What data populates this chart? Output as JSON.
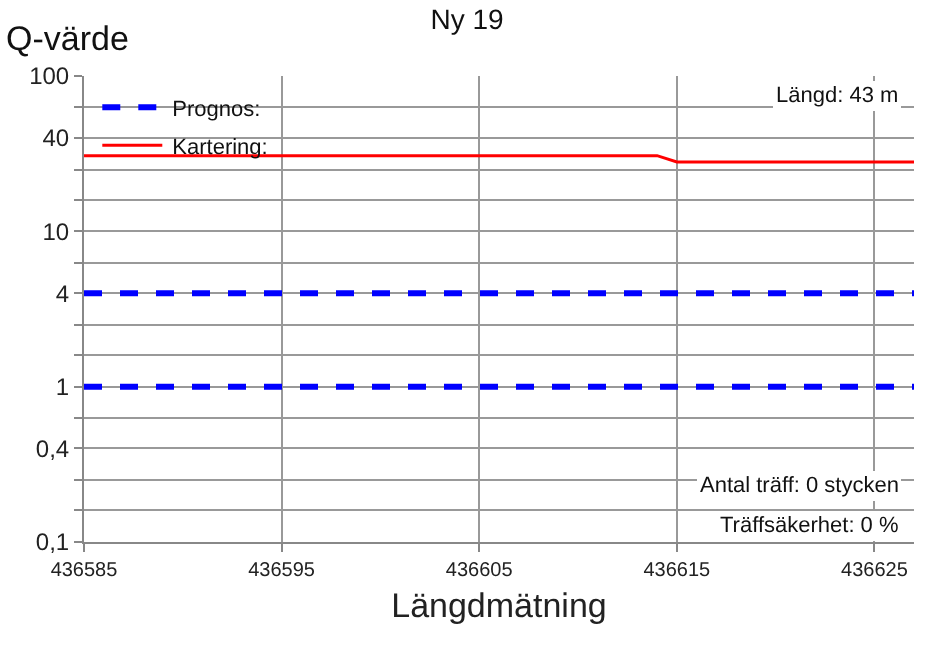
{
  "chart_data": {
    "type": "line",
    "title": "Ny 19",
    "xlabel": "Längdmätning",
    "ylabel": "Q-värde",
    "x": [
      436585,
      436614,
      436615,
      436627
    ],
    "series": [
      {
        "name": "Prognos:",
        "color": "#0000ff",
        "line_style": "dashed",
        "values": [
          4,
          4,
          4,
          4
        ]
      },
      {
        "color": "#0000ff",
        "line_style": "dashed",
        "values": [
          1,
          1,
          1,
          1
        ]
      },
      {
        "name": "Kartering:",
        "color": "#ff0000",
        "line_style": "solid",
        "values": [
          30.7,
          30.7,
          28,
          28
        ]
      }
    ],
    "xlim": [
      436585,
      436627
    ],
    "xticks": [
      436585,
      436595,
      436605,
      436615,
      436625
    ],
    "ylim": [
      0.1,
      100
    ],
    "log": "y",
    "yticks": [
      {
        "value": 0.1,
        "label": "0,1"
      },
      {
        "value": 0.16,
        "label": null
      },
      {
        "value": 0.25,
        "label": null
      },
      {
        "value": 0.4,
        "label": "0,4"
      },
      {
        "value": 0.63,
        "label": null
      },
      1,
      {
        "value": 1.6,
        "label": null
      },
      {
        "value": 2.5,
        "label": null
      },
      4,
      {
        "value": 6.3,
        "label": null
      },
      10,
      {
        "value": 16,
        "label": null
      },
      {
        "value": 25,
        "label": null
      },
      40,
      {
        "value": 63,
        "label": null
      },
      100
    ],
    "grid": true,
    "legend": "top left",
    "marker": "none",
    "annotations": [
      "Längd: 43 m",
      "Antal träff: 0 stycken",
      "Träffsäkerhet: 0 %"
    ]
  }
}
